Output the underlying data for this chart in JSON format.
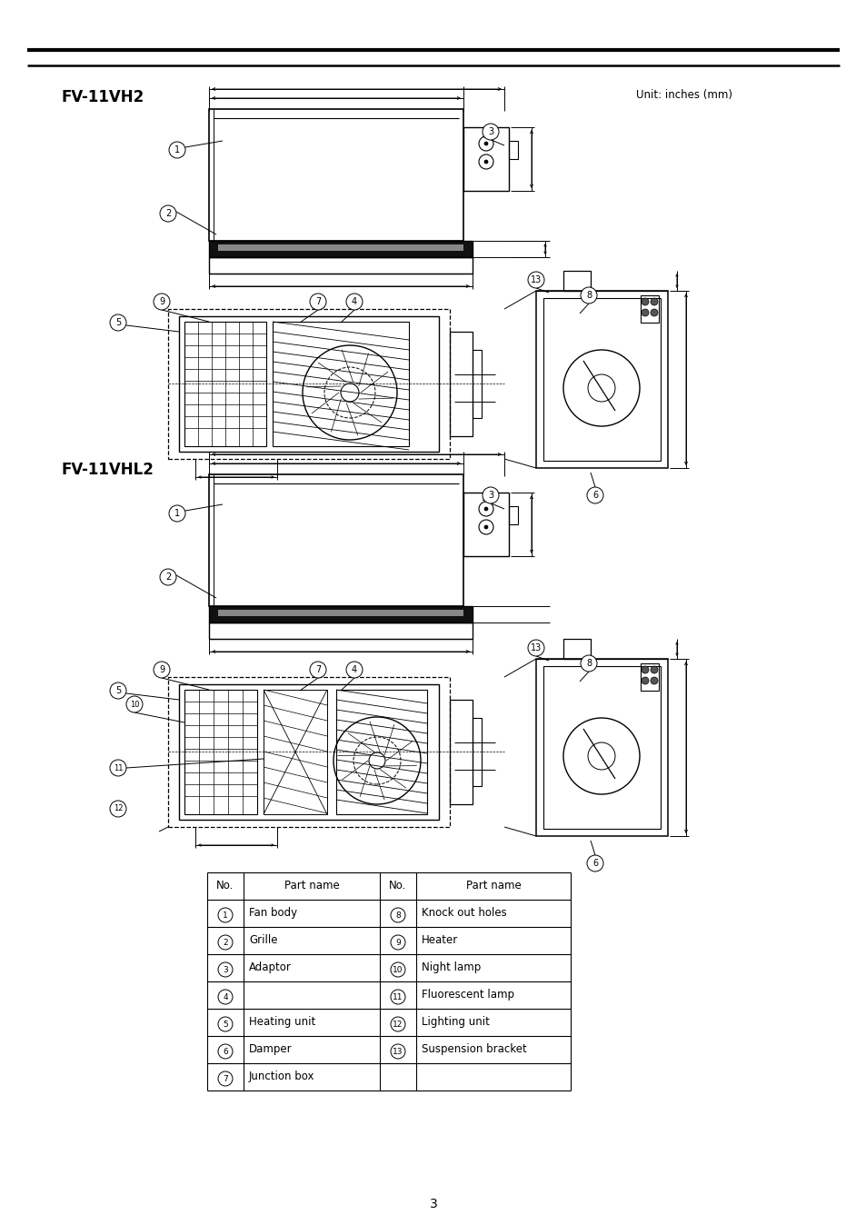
{
  "title1": "FV-11VH2",
  "title2": "FV-11VHL2",
  "unit_text": "Unit: inches (mm)",
  "page_number": "3",
  "bg_color": "#ffffff",
  "lc": "#000000",
  "table_rows": [
    [
      "1",
      "Fan body",
      "8",
      "Knock out holes"
    ],
    [
      "2",
      "Grille",
      "9",
      "Heater"
    ],
    [
      "3",
      "Adaptor",
      "10",
      "Night lamp"
    ],
    [
      "4",
      "",
      "11",
      "Fluorescent lamp"
    ],
    [
      "5",
      "Heating unit",
      "12",
      "Lighting unit"
    ],
    [
      "6",
      "Damper",
      "13",
      "Suspension bracket"
    ],
    [
      "7",
      "Junction box",
      "",
      ""
    ]
  ]
}
